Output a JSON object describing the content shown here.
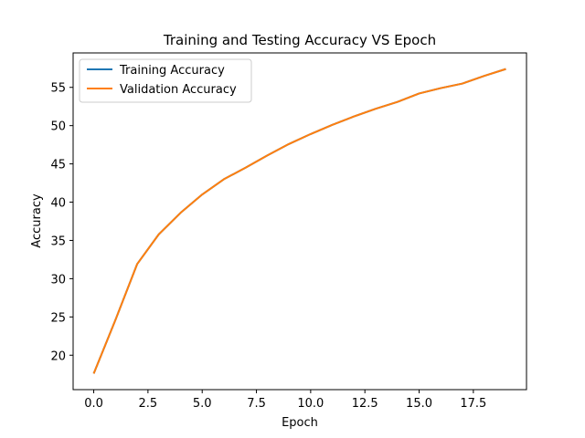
{
  "chart_data": {
    "type": "line",
    "title": "Training and Testing Accuracy VS Epoch",
    "xlabel": "Epoch",
    "ylabel": "Accuracy",
    "xlim": [
      -0.95,
      19.95
    ],
    "ylim": [
      15.5,
      59.5
    ],
    "xticks": [
      0.0,
      2.5,
      5.0,
      7.5,
      10.0,
      12.5,
      15.0,
      17.5
    ],
    "xtick_labels": [
      "0.0",
      "2.5",
      "5.0",
      "7.5",
      "10.0",
      "12.5",
      "15.0",
      "17.5"
    ],
    "yticks": [
      20,
      25,
      30,
      35,
      40,
      45,
      50,
      55
    ],
    "ytick_labels": [
      "20",
      "25",
      "30",
      "35",
      "40",
      "45",
      "50",
      "55"
    ],
    "grid": false,
    "legend_position": "upper-left",
    "x": [
      0,
      1,
      2,
      3,
      4,
      5,
      6,
      7,
      8,
      9,
      10,
      11,
      12,
      13,
      14,
      15,
      16,
      17,
      18,
      19
    ],
    "series": [
      {
        "name": "Training Accuracy",
        "color": "#1f77b4",
        "values": [
          17.6,
          24.6,
          31.9,
          35.8,
          38.6,
          41.0,
          43.0,
          44.5,
          46.1,
          47.6,
          48.9,
          50.1,
          51.2,
          52.2,
          53.1,
          54.2,
          54.9,
          55.5,
          56.5,
          57.4
        ]
      },
      {
        "name": "Validation Accuracy",
        "color": "#ff7f0e",
        "values": [
          17.6,
          24.6,
          31.9,
          35.8,
          38.6,
          41.0,
          43.0,
          44.5,
          46.1,
          47.6,
          48.9,
          50.1,
          51.2,
          52.2,
          53.1,
          54.2,
          54.9,
          55.5,
          56.5,
          57.4
        ]
      }
    ]
  }
}
